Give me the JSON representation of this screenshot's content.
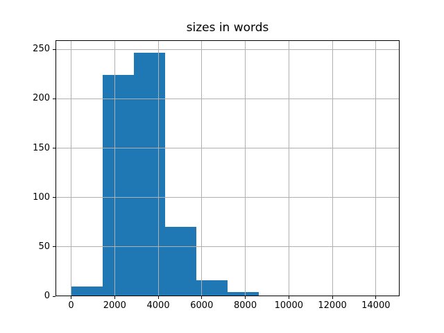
{
  "chart_data": {
    "type": "bar",
    "subtype": "histogram",
    "title": "sizes in words",
    "xlabel": "",
    "ylabel": "",
    "bar_color": "#1f77b4",
    "grid_color": "#b0b0b0",
    "axes_color": "#000000",
    "background_color": "#ffffff",
    "bin_edges": [
      0,
      1437,
      2874,
      4311,
      5748,
      7185,
      8622,
      10059,
      11496,
      12933,
      14370
    ],
    "counts": [
      10,
      224,
      247,
      70,
      16,
      4,
      1,
      0,
      0,
      1
    ],
    "x_ticks": [
      0,
      2000,
      4000,
      6000,
      8000,
      10000,
      12000,
      14000
    ],
    "x_tick_labels": [
      "0",
      "2000",
      "4000",
      "6000",
      "8000",
      "10000",
      "12000",
      "14000"
    ],
    "y_ticks": [
      0,
      50,
      100,
      150,
      200,
      250
    ],
    "y_tick_labels": [
      "0",
      "50",
      "100",
      "150",
      "200",
      "250"
    ],
    "xlim": [
      -718.5,
      15088.5
    ],
    "ylim": [
      0,
      259.35
    ],
    "grid": true,
    "legend_position": "none"
  }
}
